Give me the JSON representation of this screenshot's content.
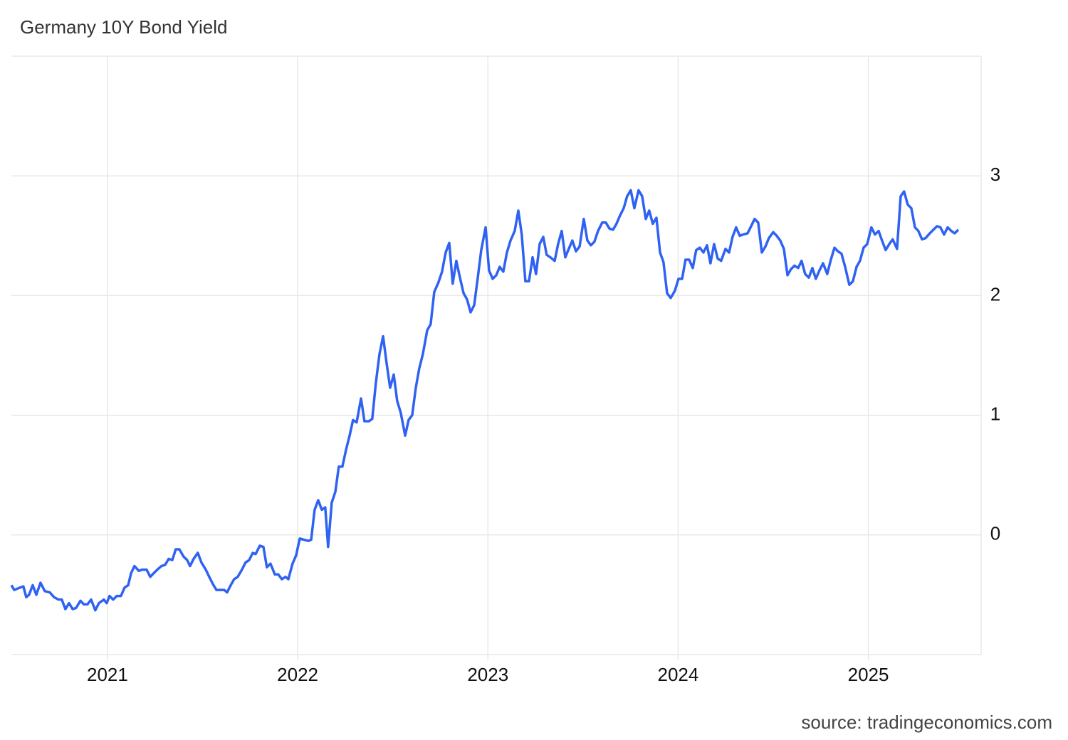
{
  "chart_data": {
    "type": "line",
    "title": "Germany 10Y Bond Yield",
    "source": "source: tradingeconomics.com",
    "color": "#2f62f2",
    "grid": true,
    "xlim": [
      2020.495,
      2025.593
    ],
    "xticks": [
      2021,
      2022,
      2023,
      2024,
      2025
    ],
    "ylim": [
      -1,
      4
    ],
    "yticks": [
      0,
      1,
      2,
      3
    ],
    "x": [
      2020.495,
      2020.51,
      2020.54,
      2020.558,
      2020.573,
      2020.588,
      2020.607,
      2020.626,
      2020.648,
      2020.671,
      2020.697,
      2020.719,
      2020.742,
      2020.76,
      2020.779,
      2020.798,
      2020.817,
      2020.835,
      2020.858,
      2020.876,
      2020.895,
      2020.914,
      2020.936,
      2020.955,
      2020.981,
      2020.996,
      2021.011,
      2021.03,
      2021.049,
      2021.071,
      2021.09,
      2021.109,
      2021.124,
      2021.142,
      2021.165,
      2021.183,
      2021.206,
      2021.225,
      2021.243,
      2021.262,
      2021.284,
      2021.303,
      2021.322,
      2021.341,
      2021.359,
      2021.378,
      2021.4,
      2021.419,
      2021.434,
      2021.453,
      2021.475,
      2021.494,
      2021.517,
      2021.535,
      2021.554,
      2021.573,
      2021.595,
      2021.614,
      2021.629,
      2021.648,
      2021.666,
      2021.685,
      2021.707,
      2021.726,
      2021.745,
      2021.764,
      2021.779,
      2021.801,
      2021.82,
      2021.838,
      2021.857,
      2021.88,
      2021.898,
      2021.917,
      2021.936,
      2021.951,
      2021.973,
      2021.992,
      2022.011,
      2022.033,
      2022.056,
      2022.071,
      2022.089,
      2022.108,
      2022.127,
      2022.145,
      2022.16,
      2022.179,
      2022.198,
      2022.216,
      2022.235,
      2022.254,
      2022.273,
      2022.291,
      2022.31,
      2022.333,
      2022.351,
      2022.374,
      2022.392,
      2022.411,
      2022.43,
      2022.449,
      2022.467,
      2022.486,
      2022.505,
      2022.523,
      2022.542,
      2022.565,
      2022.583,
      2022.602,
      2022.621,
      2022.639,
      2022.658,
      2022.681,
      2022.699,
      2022.718,
      2022.74,
      2022.759,
      2022.778,
      2022.797,
      2022.815,
      2022.834,
      2022.853,
      2022.872,
      2022.89,
      2022.909,
      2022.928,
      2022.946,
      2022.965,
      2022.988,
      2023.006,
      2023.025,
      2023.044,
      2023.062,
      2023.081,
      2023.1,
      2023.119,
      2023.141,
      2023.16,
      2023.178,
      2023.197,
      2023.216,
      2023.235,
      2023.253,
      2023.272,
      2023.291,
      2023.309,
      2023.328,
      2023.351,
      2023.369,
      2023.388,
      2023.407,
      2023.425,
      2023.444,
      2023.463,
      2023.482,
      2023.504,
      2023.523,
      2023.541,
      2023.56,
      2023.579,
      2023.601,
      2023.62,
      2023.639,
      2023.658,
      2023.676,
      2023.695,
      2023.714,
      2023.732,
      2023.751,
      2023.77,
      2023.792,
      2023.811,
      2023.83,
      2023.848,
      2023.867,
      2023.886,
      2023.905,
      2023.923,
      2023.942,
      2023.961,
      2023.983,
      2024.002,
      2024.021,
      2024.039,
      2024.058,
      2024.077,
      2024.095,
      2024.114,
      2024.133,
      2024.152,
      2024.17,
      2024.189,
      2024.208,
      2024.226,
      2024.249,
      2024.268,
      2024.286,
      2024.305,
      2024.324,
      2024.342,
      2024.365,
      2024.384,
      2024.402,
      2024.421,
      2024.44,
      2024.459,
      2024.477,
      2024.5,
      2024.518,
      2024.537,
      2024.556,
      2024.575,
      2024.593,
      2024.612,
      2024.631,
      2024.649,
      2024.668,
      2024.687,
      2024.706,
      2024.724,
      2024.743,
      2024.762,
      2024.784,
      2024.803,
      2024.822,
      2024.84,
      2024.859,
      2024.878,
      2024.9,
      2024.919,
      2024.938,
      2024.956,
      2024.975,
      2024.994,
      2025.016,
      2025.035,
      2025.054,
      2025.072,
      2025.091,
      2025.11,
      2025.128,
      2025.151,
      2025.17,
      2025.188,
      2025.207,
      2025.226,
      2025.245,
      2025.263,
      2025.282,
      2025.301,
      2025.323,
      2025.342,
      2025.361,
      2025.379,
      2025.398,
      2025.417,
      2025.436,
      2025.454,
      2025.473
    ],
    "values": [
      -0.42,
      -0.46,
      -0.44,
      -0.43,
      -0.52,
      -0.5,
      -0.42,
      -0.5,
      -0.4,
      -0.47,
      -0.48,
      -0.52,
      -0.54,
      -0.54,
      -0.62,
      -0.57,
      -0.62,
      -0.61,
      -0.55,
      -0.58,
      -0.58,
      -0.54,
      -0.63,
      -0.57,
      -0.54,
      -0.57,
      -0.51,
      -0.54,
      -0.51,
      -0.51,
      -0.44,
      -0.42,
      -0.32,
      -0.26,
      -0.3,
      -0.29,
      -0.29,
      -0.35,
      -0.32,
      -0.29,
      -0.26,
      -0.25,
      -0.2,
      -0.21,
      -0.12,
      -0.12,
      -0.18,
      -0.21,
      -0.26,
      -0.2,
      -0.15,
      -0.23,
      -0.29,
      -0.35,
      -0.41,
      -0.46,
      -0.46,
      -0.46,
      -0.48,
      -0.42,
      -0.37,
      -0.35,
      -0.29,
      -0.23,
      -0.21,
      -0.15,
      -0.16,
      -0.09,
      -0.1,
      -0.27,
      -0.24,
      -0.33,
      -0.33,
      -0.37,
      -0.35,
      -0.37,
      -0.24,
      -0.17,
      -0.03,
      -0.04,
      -0.05,
      -0.04,
      0.21,
      0.29,
      0.21,
      0.23,
      -0.1,
      0.27,
      0.36,
      0.57,
      0.57,
      0.71,
      0.83,
      0.96,
      0.94,
      1.14,
      0.95,
      0.95,
      0.97,
      1.27,
      1.51,
      1.66,
      1.44,
      1.23,
      1.34,
      1.12,
      1.02,
      0.83,
      0.96,
      1.0,
      1.23,
      1.39,
      1.51,
      1.71,
      1.76,
      2.03,
      2.11,
      2.2,
      2.36,
      2.44,
      2.1,
      2.29,
      2.15,
      2.02,
      1.97,
      1.86,
      1.92,
      2.14,
      2.38,
      2.57,
      2.21,
      2.14,
      2.17,
      2.24,
      2.2,
      2.36,
      2.46,
      2.54,
      2.71,
      2.51,
      2.12,
      2.12,
      2.32,
      2.18,
      2.43,
      2.49,
      2.34,
      2.32,
      2.29,
      2.43,
      2.54,
      2.32,
      2.39,
      2.46,
      2.37,
      2.41,
      2.64,
      2.46,
      2.42,
      2.45,
      2.54,
      2.61,
      2.61,
      2.56,
      2.55,
      2.6,
      2.67,
      2.73,
      2.83,
      2.88,
      2.73,
      2.88,
      2.83,
      2.64,
      2.71,
      2.6,
      2.65,
      2.36,
      2.28,
      2.02,
      1.98,
      2.04,
      2.14,
      2.14,
      2.3,
      2.3,
      2.23,
      2.38,
      2.4,
      2.36,
      2.42,
      2.27,
      2.43,
      2.31,
      2.29,
      2.39,
      2.36,
      2.49,
      2.57,
      2.5,
      2.51,
      2.52,
      2.58,
      2.64,
      2.61,
      2.36,
      2.41,
      2.48,
      2.53,
      2.5,
      2.46,
      2.39,
      2.17,
      2.22,
      2.25,
      2.23,
      2.29,
      2.18,
      2.15,
      2.23,
      2.14,
      2.21,
      2.27,
      2.18,
      2.3,
      2.4,
      2.37,
      2.35,
      2.24,
      2.09,
      2.12,
      2.24,
      2.29,
      2.4,
      2.43,
      2.57,
      2.51,
      2.54,
      2.46,
      2.38,
      2.43,
      2.47,
      2.39,
      2.83,
      2.87,
      2.76,
      2.73,
      2.57,
      2.54,
      2.47,
      2.48,
      2.52,
      2.55,
      2.58,
      2.57,
      2.51,
      2.57,
      2.54,
      2.52,
      2.55
    ]
  }
}
